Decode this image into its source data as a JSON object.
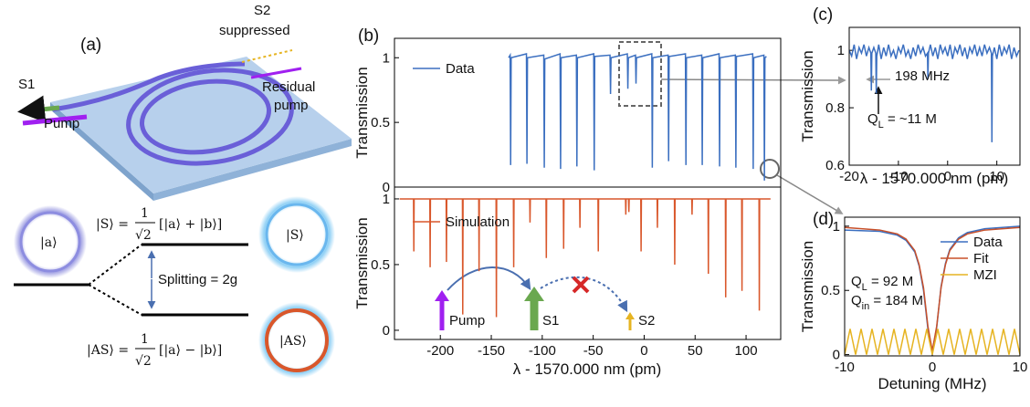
{
  "diagram": {
    "panel_label": "(a)",
    "s1": "S1",
    "pump": "Pump",
    "s2": "S2",
    "suppressed": "suppressed",
    "residual": "Residual",
    "residual_pump": "pump",
    "ket_a": "|a⟩",
    "s_state": {
      "lhs": "|S⟩ =",
      "num": "1",
      "den": "√2",
      "rhs": "[|a⟩ + |b⟩]"
    },
    "as_state": {
      "lhs": "|AS⟩ =",
      "num": "1",
      "den": "√2",
      "rhs": "[|a⟩ − |b⟩]"
    },
    "splitting": "Splitting = 2g",
    "ring_s": "|S⟩",
    "ring_as": "|AS⟩"
  },
  "chart_data": [
    {
      "type": "line",
      "panel_label": "(b)",
      "ylabel": "Transmission",
      "xlim": [
        -245,
        134
      ],
      "ylim": [
        0,
        1.15
      ],
      "yticks": [
        0,
        0.5,
        1
      ],
      "series": [
        {
          "name": "Data",
          "color": "#3b6fc0",
          "x": [
            -133,
            -131.5,
            -131,
            -130.5,
            -115.5,
            -115,
            -114.5,
            -98.5,
            -98,
            -97.5,
            -82.5,
            -82,
            -81.5,
            -66.5,
            -66,
            -65.5,
            -49.5,
            -49,
            -48.5,
            -33.5,
            -33,
            -32.5,
            -16.5,
            -16,
            -15.5,
            -8.5,
            -8,
            -7.5,
            7.5,
            8,
            8.5,
            23.5,
            24,
            24.5,
            40.5,
            41,
            41.5,
            56.5,
            57,
            57.5,
            73.5,
            74,
            74.5,
            89.5,
            90,
            90.5,
            106.5,
            107,
            107.5,
            117.5,
            118,
            118.5,
            120
          ],
          "values": [
            1.0,
            1.02,
            0.17,
            1.0,
            1.03,
            0.18,
            1.0,
            1.02,
            0.15,
            0.99,
            1.03,
            0.14,
            1.0,
            1.02,
            0.16,
            1.0,
            1.03,
            0.13,
            1.01,
            1.02,
            0.72,
            1.0,
            1.03,
            0.76,
            1.0,
            1.02,
            0.8,
            1.0,
            1.03,
            0.15,
            1.0,
            1.02,
            0.2,
            1.01,
            1.03,
            0.17,
            1.0,
            1.02,
            0.17,
            1.0,
            1.03,
            0.16,
            1.0,
            1.02,
            0.15,
            1.01,
            1.03,
            0.14,
            1.0,
            1.02,
            0.05,
            1.0,
            1.01
          ]
        }
      ],
      "annotations": []
    },
    {
      "type": "line",
      "ylabel": "Transmission",
      "xlabel": "λ - 1570.000 nm (pm)",
      "xlim": [
        -245,
        134
      ],
      "ylim": [
        -0.07,
        1.09
      ],
      "xticks": [
        -200,
        -150,
        -100,
        -50,
        0,
        50,
        100
      ],
      "yticks": [
        0,
        0.5,
        1
      ],
      "series": [
        {
          "name": "Simulation",
          "color": "#d9572b",
          "x": [
            -240,
            -226.3,
            -226,
            -225.7,
            -210.3,
            -210,
            -209.7,
            -194.3,
            -194,
            -193.7,
            -178.3,
            -178,
            -177.7,
            -162.3,
            -162,
            -161.7,
            -145.3,
            -145,
            -144.7,
            -128.3,
            -128,
            -127.7,
            -112.3,
            -112,
            -111.7,
            -96.3,
            -96,
            -95.7,
            -79.3,
            -79,
            -78.7,
            -63.3,
            -63,
            -62.7,
            -45.3,
            -45,
            -44.7,
            -18.3,
            -18,
            -17.7,
            -15.3,
            -15,
            -14.7,
            -3.3,
            -3,
            -2.7,
            12.7,
            13,
            13.3,
            29.7,
            30,
            30.3,
            46.7,
            47,
            47.3,
            62.7,
            63,
            63.3,
            79.7,
            80,
            80.3,
            95.7,
            96,
            96.3,
            112.7,
            113,
            113.3,
            124
          ],
          "values": [
            1,
            1,
            0.6,
            1,
            1,
            0.48,
            1,
            1,
            0.52,
            1,
            1,
            0.12,
            1,
            1,
            0.45,
            1,
            1,
            0.1,
            1,
            1,
            0.48,
            1,
            1,
            0.82,
            1,
            1,
            0.55,
            1,
            1,
            0.62,
            1,
            1,
            0.78,
            1,
            1,
            0.6,
            1,
            1,
            0.88,
            1,
            1,
            0.9,
            1,
            1,
            0.6,
            1,
            1,
            0.78,
            1,
            1,
            0.5,
            1,
            1,
            0.88,
            1,
            1,
            0.43,
            1,
            1,
            0.25,
            1,
            1,
            0.3,
            1,
            1,
            0.15,
            1,
            1
          ]
        }
      ],
      "annotations": [
        {
          "text": "Pump"
        },
        {
          "text": "S1"
        },
        {
          "text": "S2"
        }
      ]
    },
    {
      "type": "line",
      "panel_label": "(c)",
      "ylabel": "Transmission",
      "xlabel": "λ - 1570.000 nm (pm)",
      "xlim": [
        -20,
        14.7
      ],
      "ylim": [
        0.6,
        1.08
      ],
      "xticks": [
        -20,
        -10,
        0,
        10
      ],
      "yticks": [
        0.6,
        0.8,
        1
      ],
      "series": [
        {
          "name": "Data",
          "color": "#3b6fc0",
          "x": [
            -20,
            -19.5,
            -19,
            -18.5,
            -18,
            -17.5,
            -17,
            -16.5,
            -16,
            -15.6,
            -15.5,
            -15.4,
            -15,
            -14.6,
            -14.5,
            -14.4,
            -14,
            -13.5,
            -13,
            -12.5,
            -12,
            -11.5,
            -11,
            -10.5,
            -10,
            -9.5,
            -9,
            -8.5,
            -8,
            -7.5,
            -7,
            -6.5,
            -6,
            -5.5,
            -5,
            -4.5,
            -4.1,
            -4,
            -3.9,
            -3.5,
            -3,
            -2.5,
            -2,
            -1.5,
            -1,
            -0.5,
            0,
            0.5,
            1,
            1.5,
            2,
            2.5,
            3,
            3.5,
            4,
            4.5,
            5,
            5.5,
            6,
            6.5,
            7,
            7.5,
            8,
            8.5,
            8.9,
            9,
            9.1,
            9.5,
            10,
            10.5,
            11,
            11.5,
            12,
            12.5,
            13,
            13.5,
            14,
            14.5
          ],
          "values": [
            1.0,
            0.98,
            1.02,
            0.97,
            1.01,
            0.99,
            1.02,
            0.98,
            1.01,
            0.99,
            0.86,
            0.99,
            1.01,
            0.99,
            0.85,
            0.98,
            1.02,
            0.97,
            1.01,
            0.98,
            1.02,
            0.98,
            1.0,
            0.97,
            1.01,
            0.99,
            1.02,
            0.98,
            1.0,
            0.97,
            1.01,
            0.98,
            1.02,
            0.99,
            1.01,
            0.98,
            0.99,
            0.9,
            0.99,
            1.02,
            0.98,
            1.01,
            0.97,
            1.02,
            0.99,
            1.01,
            0.98,
            1.02,
            0.97,
            1.01,
            0.99,
            1.02,
            0.98,
            1.01,
            0.97,
            1.01,
            0.99,
            1.02,
            0.98,
            1.01,
            0.98,
            1.02,
            0.99,
            1.01,
            0.99,
            0.68,
            0.98,
            1.01,
            0.97,
            1.02,
            0.98,
            1.01,
            0.99,
            1.02,
            0.97,
            1.01,
            0.98,
            1.0
          ]
        }
      ],
      "annotations": [
        {
          "text": "198 MHz"
        },
        {
          "text": "Q",
          "sub": "L",
          "rest": " = ~11 M"
        }
      ]
    },
    {
      "type": "line",
      "panel_label": "(d)",
      "ylabel": "Transmission",
      "xlabel": "Detuning (MHz)",
      "xlim": [
        -10,
        10
      ],
      "ylim": [
        -0.01,
        1.07
      ],
      "xticks": [
        -10,
        0,
        10
      ],
      "yticks": [
        0,
        0.5,
        1
      ],
      "series": [
        {
          "name": "Data",
          "color": "#3b6fc0",
          "x": [
            -10,
            -6,
            -4,
            -3,
            -2,
            -1.5,
            -1,
            -0.5,
            0,
            0.5,
            1,
            1.5,
            2,
            3,
            4,
            6,
            10
          ],
          "values": [
            0.97,
            0.96,
            0.93,
            0.89,
            0.8,
            0.69,
            0.5,
            0.2,
            0.02,
            0.21,
            0.53,
            0.71,
            0.82,
            0.91,
            0.95,
            0.98,
            1.0
          ]
        },
        {
          "name": "Fit",
          "color": "#c8502a",
          "x": [
            -10,
            -6,
            -4,
            -3,
            -2,
            -1.5,
            -1,
            -0.5,
            0,
            0.5,
            1,
            1.5,
            2,
            3,
            4,
            6,
            10
          ],
          "values": [
            0.99,
            0.97,
            0.94,
            0.9,
            0.81,
            0.7,
            0.52,
            0.22,
            0.03,
            0.22,
            0.52,
            0.7,
            0.81,
            0.9,
            0.94,
            0.97,
            0.99
          ]
        },
        {
          "name": "MZI",
          "color": "#e6b422",
          "x": [
            -10,
            -9.375,
            -8.75,
            -8.125,
            -7.5,
            -6.875,
            -6.25,
            -5.625,
            -5,
            -4.375,
            -3.75,
            -3.125,
            -2.5,
            -1.875,
            -1.25,
            -0.625,
            0,
            0.625,
            1.25,
            1.875,
            2.5,
            3.125,
            3.75,
            4.375,
            5,
            5.625,
            6.25,
            6.875,
            7.5,
            8.125,
            8.75,
            9.375,
            10
          ],
          "values": [
            0,
            0.2,
            0,
            0.2,
            0,
            0.2,
            0,
            0.2,
            0,
            0.2,
            0,
            0.2,
            0,
            0.2,
            0,
            0.2,
            0,
            0.2,
            0,
            0.2,
            0,
            0.2,
            0,
            0.2,
            0,
            0.2,
            0,
            0.2,
            0,
            0.2,
            0,
            0.2,
            0
          ]
        }
      ],
      "annotations": [
        {
          "text": "Q",
          "sub": "L",
          "rest": " = 92 M"
        },
        {
          "text": "Q",
          "sub": "in",
          "rest": " = 184 M"
        }
      ]
    }
  ]
}
